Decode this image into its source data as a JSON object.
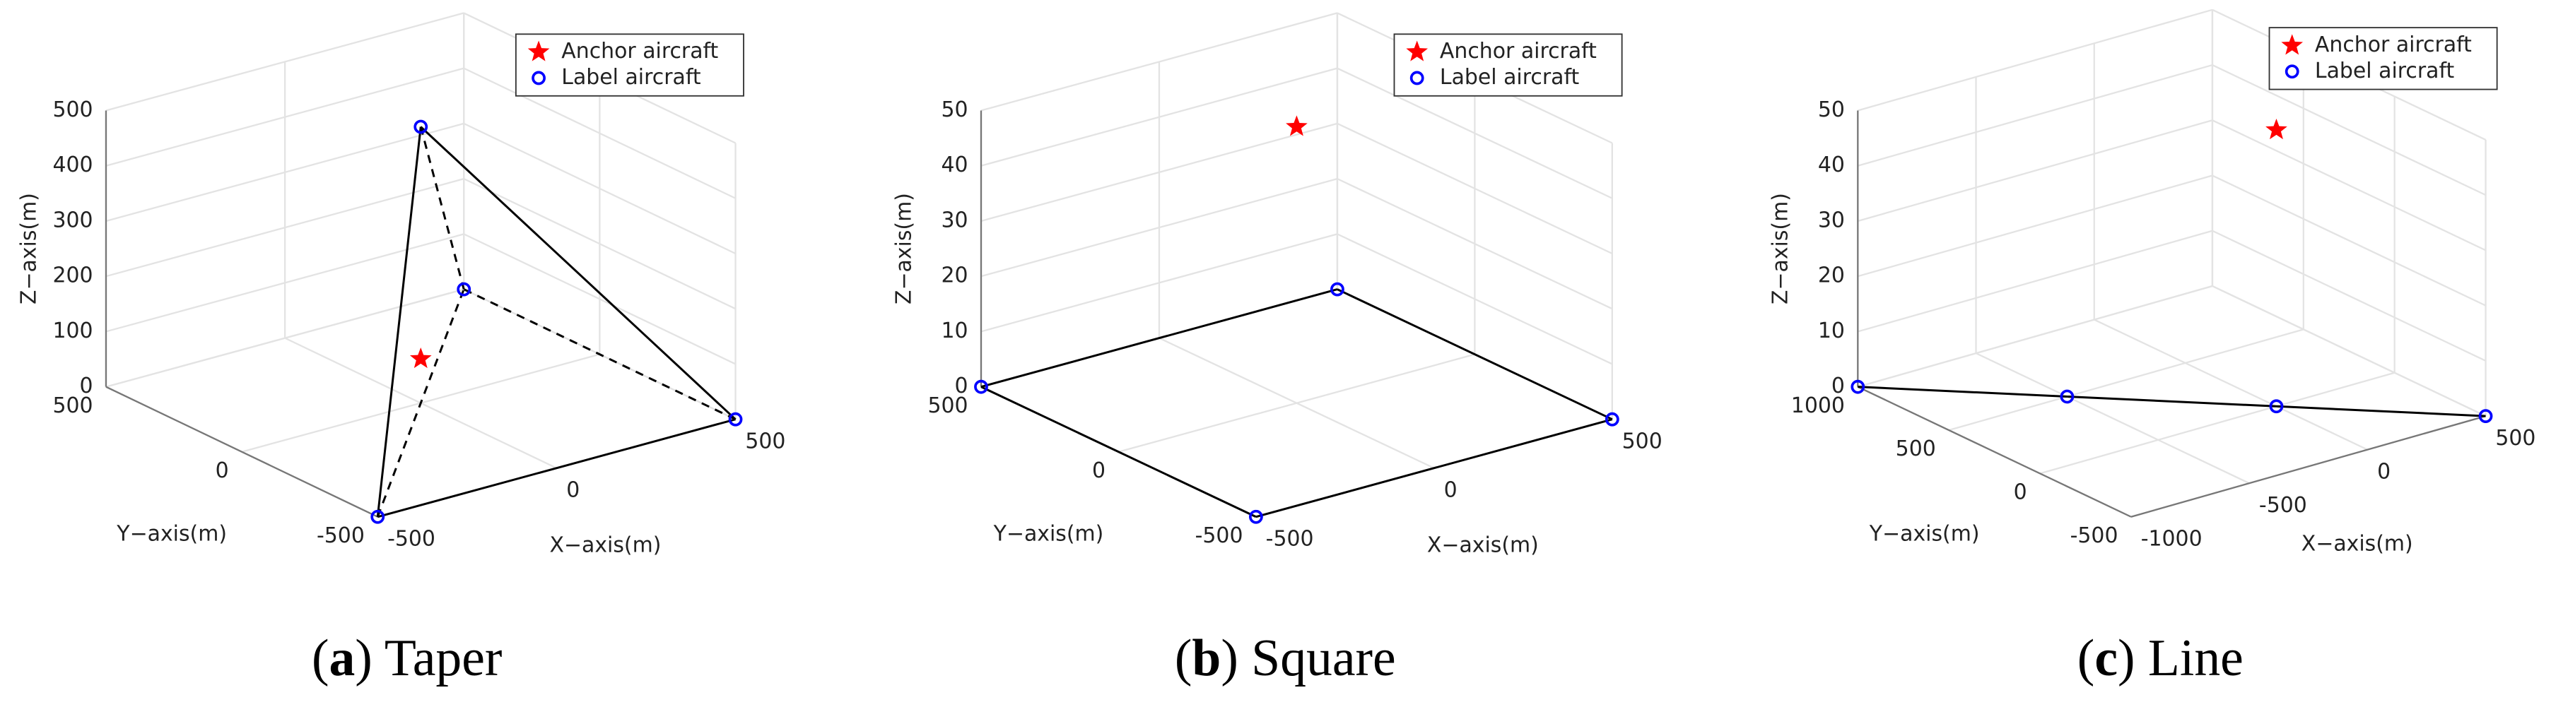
{
  "chart_data": [
    {
      "type": "scatter3d",
      "caption": [
        "(",
        "a",
        ") Taper"
      ],
      "xlabel": "X−axis(m)",
      "ylabel": "Y−axis(m)",
      "zlabel": "Z−axis(m)",
      "xlim": [
        -500,
        500
      ],
      "ylim": [
        -500,
        500
      ],
      "zlim": [
        0,
        500
      ],
      "xticks": [
        -500,
        0,
        500
      ],
      "yticks": [
        -500,
        0,
        500
      ],
      "zticks": [
        0,
        100,
        200,
        300,
        400,
        500
      ],
      "grid": true,
      "series": [
        {
          "name": "Anchor aircraft",
          "color": "#ff0000",
          "marker": "star",
          "x": [
            0
          ],
          "y": [
            0
          ],
          "z": [
            80
          ]
        },
        {
          "name": "Label aircraft",
          "color": "#0000ff",
          "marker": "circle",
          "x": [
            0,
            -500,
            500,
            500
          ],
          "y": [
            0,
            -500,
            -500,
            500
          ],
          "z": [
            500,
            0,
            0,
            0
          ]
        }
      ]
    },
    {
      "type": "scatter3d",
      "caption": [
        "(",
        "b",
        ") Square"
      ],
      "xlabel": "X−axis(m)",
      "ylabel": "Y−axis(m)",
      "zlabel": "Z−axis(m)",
      "xlim": [
        -500,
        500
      ],
      "ylim": [
        -500,
        500
      ],
      "zlim": [
        0,
        50
      ],
      "xticks": [
        -500,
        0,
        500
      ],
      "yticks": [
        -500,
        0,
        500
      ],
      "zticks": [
        0,
        10,
        20,
        30,
        40,
        50
      ],
      "grid": true,
      "series": [
        {
          "name": "Anchor aircraft",
          "color": "#ff0000",
          "marker": "star",
          "x": [
            0
          ],
          "y": [
            0
          ],
          "z": [
            50
          ]
        },
        {
          "name": "Label aircraft",
          "color": "#0000ff",
          "marker": "circle",
          "x": [
            -500,
            -500,
            500,
            500
          ],
          "y": [
            500,
            -500,
            -500,
            500
          ],
          "z": [
            0,
            0,
            0,
            0
          ]
        }
      ]
    },
    {
      "type": "scatter3d",
      "caption": [
        "(",
        "c",
        ") Line"
      ],
      "xlabel": "X−axis(m)",
      "ylabel": "Y−axis(m)",
      "zlabel": "Z−axis(m)",
      "xlim": [
        -1000,
        500
      ],
      "ylim": [
        -500,
        1000
      ],
      "zlim": [
        0,
        50
      ],
      "xticks": [
        -1000,
        -500,
        0,
        500
      ],
      "yticks": [
        -500,
        0,
        500,
        1000
      ],
      "zticks": [
        0,
        10,
        20,
        30,
        40,
        50
      ],
      "grid": true,
      "series": [
        {
          "name": "Anchor aircraft",
          "color": "#ff0000",
          "marker": "star",
          "x": [
            0
          ],
          "y": [
            0
          ],
          "z": [
            50
          ]
        },
        {
          "name": "Label aircraft",
          "color": "#0000ff",
          "marker": "circle",
          "x": [
            -1000,
            -500,
            0,
            500
          ],
          "y": [
            1000,
            500,
            0,
            -500
          ],
          "z": [
            0,
            0,
            0,
            0
          ]
        }
      ]
    }
  ]
}
